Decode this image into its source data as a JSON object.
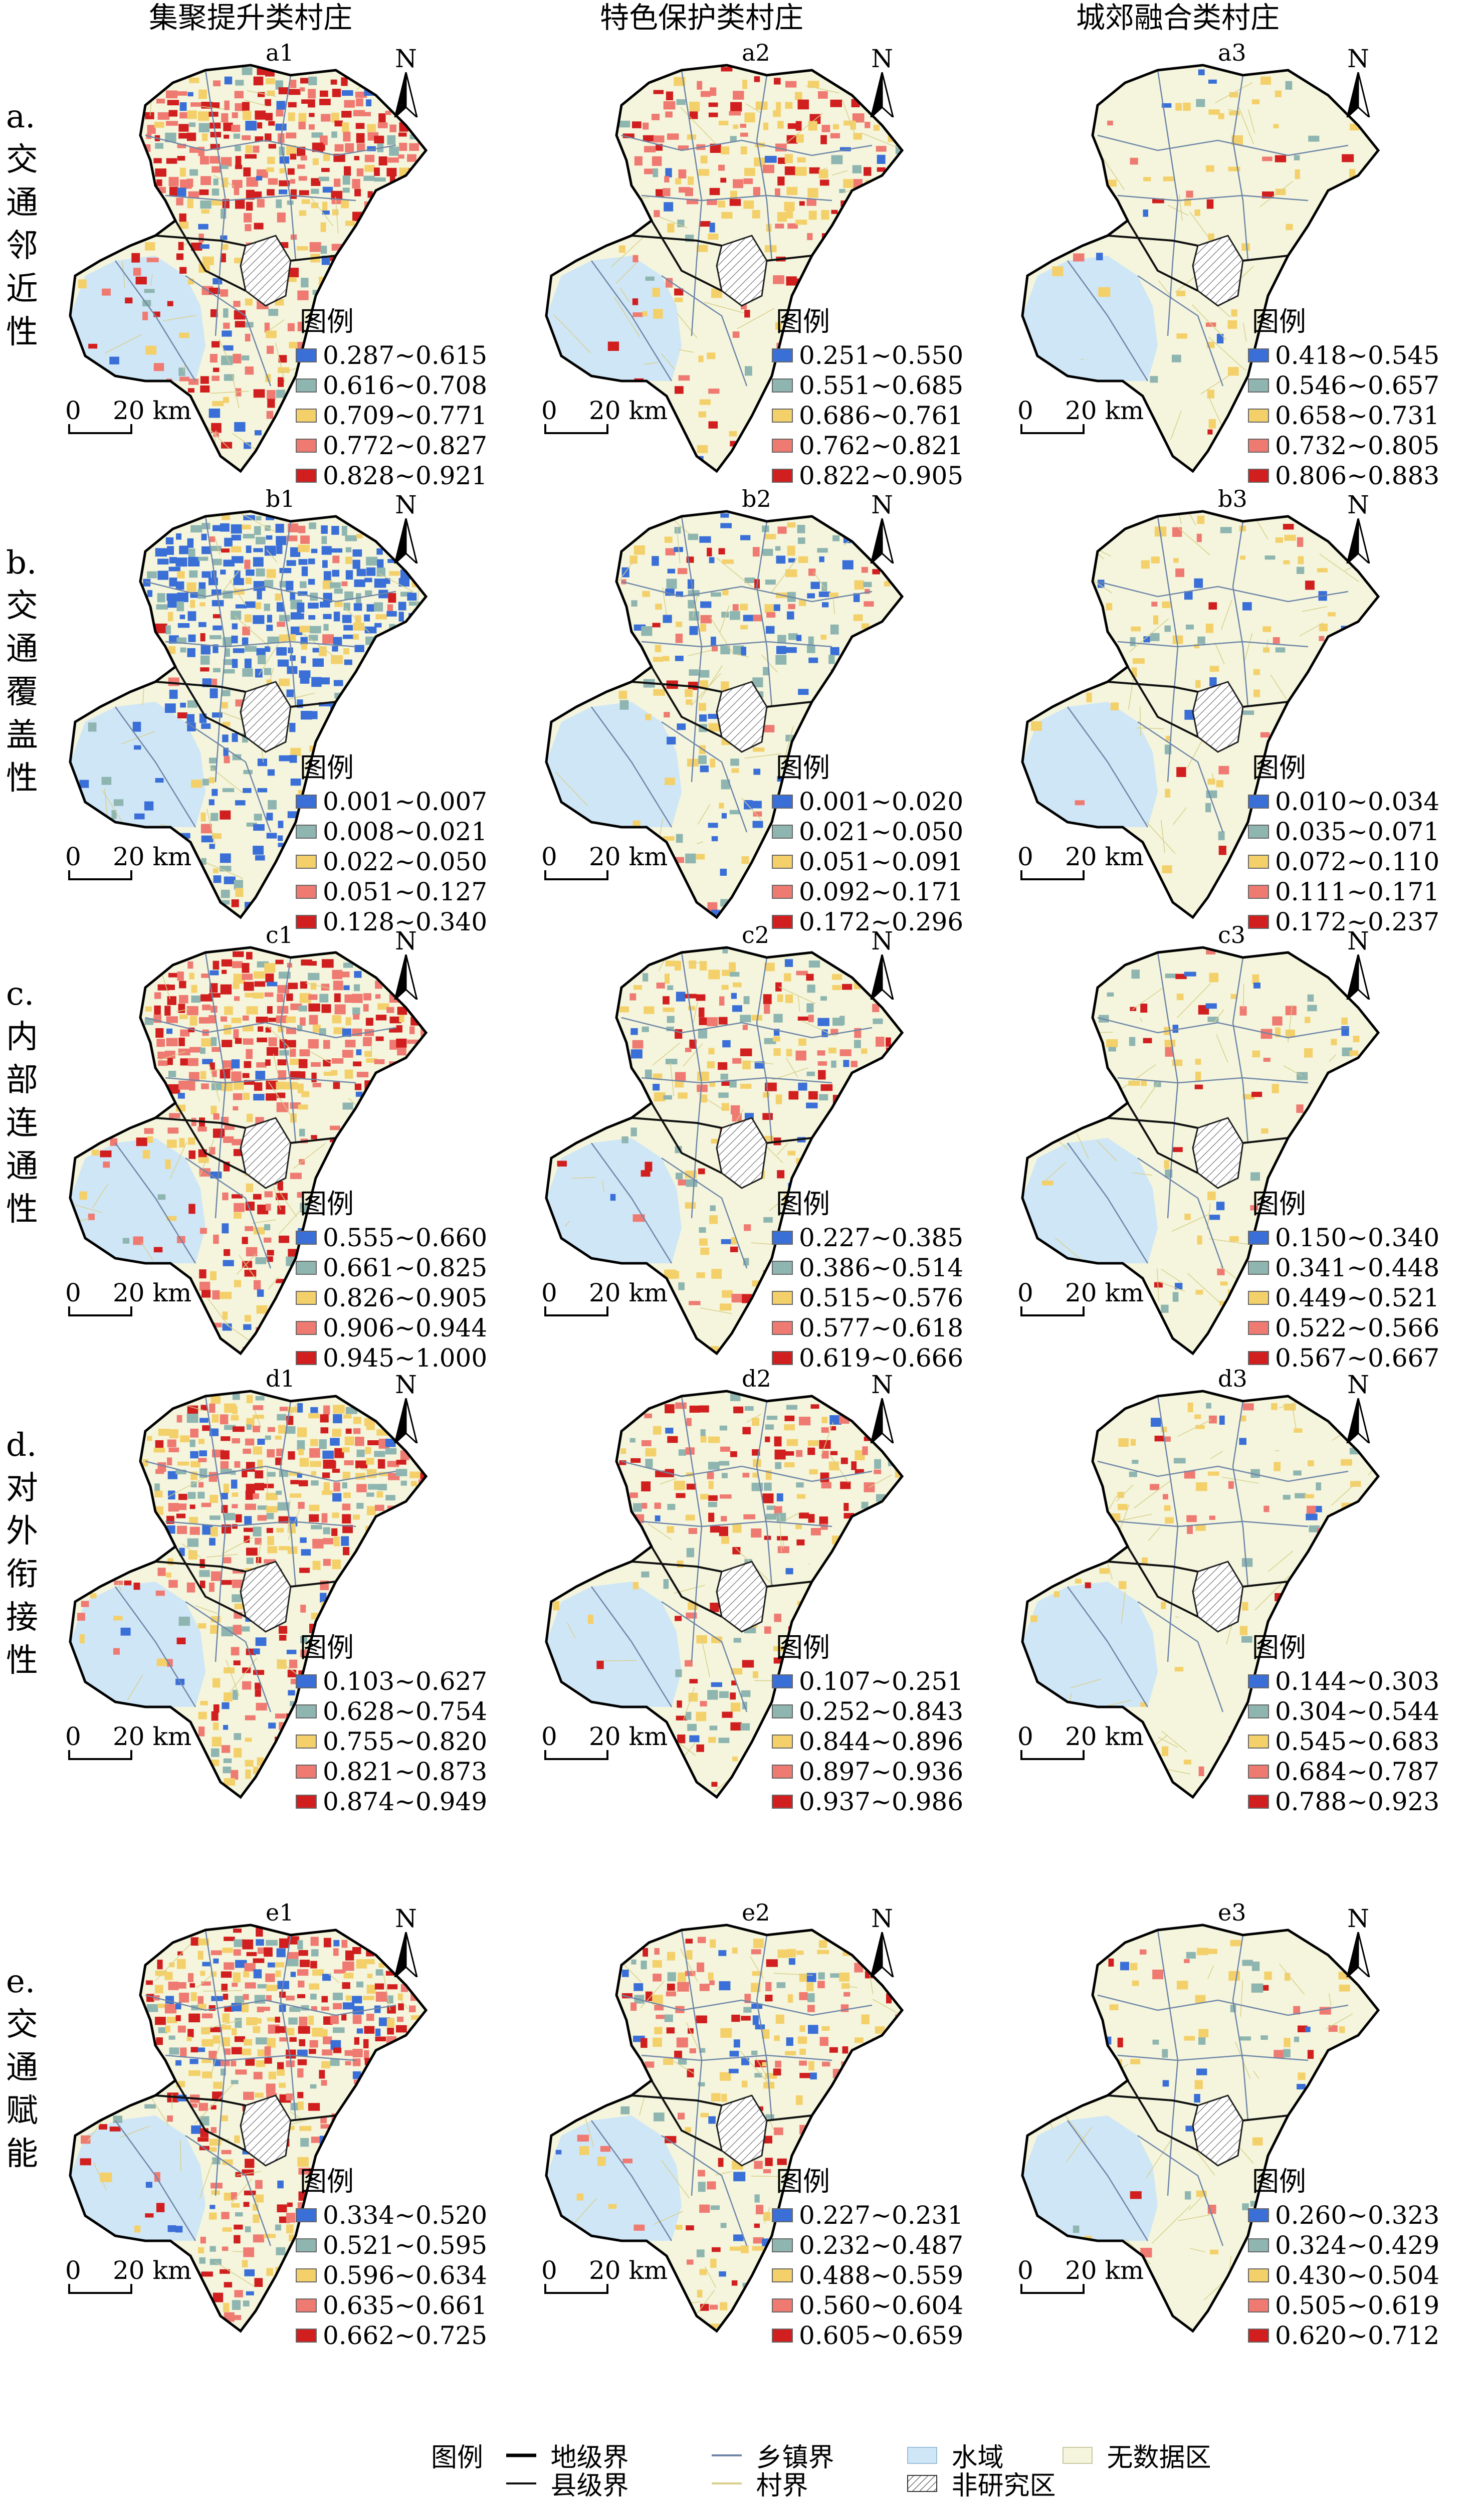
{
  "columns": [
    {
      "title": "集聚提升类村庄"
    },
    {
      "title": "特色保护类村庄"
    },
    {
      "title": "城郊融合类村庄"
    }
  ],
  "rows": [
    {
      "label_chars": [
        "a.",
        "交",
        "通",
        "邻",
        "近",
        "性"
      ],
      "panels": [
        {
          "id": "a1",
          "legend": [
            "0.287~0.615",
            "0.616~0.708",
            "0.709~0.771",
            "0.772~0.827",
            "0.828~0.921"
          ]
        },
        {
          "id": "a2",
          "legend": [
            "0.251~0.550",
            "0.551~0.685",
            "0.686~0.761",
            "0.762~0.821",
            "0.822~0.905"
          ]
        },
        {
          "id": "a3",
          "legend": [
            "0.418~0.545",
            "0.546~0.657",
            "0.658~0.731",
            "0.732~0.805",
            "0.806~0.883"
          ]
        }
      ]
    },
    {
      "label_chars": [
        "b.",
        "交",
        "通",
        "覆",
        "盖",
        "性"
      ],
      "panels": [
        {
          "id": "b1",
          "legend": [
            "0.001~0.007",
            "0.008~0.021",
            "0.022~0.050",
            "0.051~0.127",
            "0.128~0.340"
          ]
        },
        {
          "id": "b2",
          "legend": [
            "0.001~0.020",
            "0.021~0.050",
            "0.051~0.091",
            "0.092~0.171",
            "0.172~0.296"
          ]
        },
        {
          "id": "b3",
          "legend": [
            "0.010~0.034",
            "0.035~0.071",
            "0.072~0.110",
            "0.111~0.171",
            "0.172~0.237"
          ]
        }
      ]
    },
    {
      "label_chars": [
        "c.",
        "内",
        "部",
        "连",
        "通",
        "性"
      ],
      "panels": [
        {
          "id": "c1",
          "legend": [
            "0.555~0.660",
            "0.661~0.825",
            "0.826~0.905",
            "0.906~0.944",
            "0.945~1.000"
          ]
        },
        {
          "id": "c2",
          "legend": [
            "0.227~0.385",
            "0.386~0.514",
            "0.515~0.576",
            "0.577~0.618",
            "0.619~0.666"
          ]
        },
        {
          "id": "c3",
          "legend": [
            "0.150~0.340",
            "0.341~0.448",
            "0.449~0.521",
            "0.522~0.566",
            "0.567~0.667"
          ]
        }
      ]
    },
    {
      "label_chars": [
        "d.",
        "对",
        "外",
        "衔",
        "接",
        "性"
      ],
      "panels": [
        {
          "id": "d1",
          "legend": [
            "0.103~0.627",
            "0.628~0.754",
            "0.755~0.820",
            "0.821~0.873",
            "0.874~0.949"
          ]
        },
        {
          "id": "d2",
          "legend": [
            "0.107~0.251",
            "0.252~0.843",
            "0.844~0.896",
            "0.897~0.936",
            "0.937~0.986"
          ]
        },
        {
          "id": "d3",
          "legend": [
            "0.144~0.303",
            "0.304~0.544",
            "0.545~0.683",
            "0.684~0.787",
            "0.788~0.923"
          ]
        }
      ]
    },
    {
      "label_chars": [
        "e.",
        "交",
        "通",
        "赋",
        "能"
      ],
      "panels": [
        {
          "id": "e1",
          "legend": [
            "0.334~0.520",
            "0.521~0.595",
            "0.596~0.634",
            "0.635~0.661",
            "0.662~0.725"
          ]
        },
        {
          "id": "e2",
          "legend": [
            "0.227~0.231",
            "0.232~0.487",
            "0.488~0.559",
            "0.560~0.604",
            "0.605~0.659"
          ]
        },
        {
          "id": "e3",
          "legend": [
            "0.260~0.323",
            "0.324~0.429",
            "0.430~0.504",
            "0.505~0.619",
            "0.620~0.712"
          ]
        }
      ]
    }
  ],
  "legend_title": "图例",
  "north_label": "N",
  "scale": {
    "zero": "0",
    "distance": "20 km"
  },
  "class_colors": [
    "#3a6fd8",
    "#8fb5b0",
    "#f4d06a",
    "#ef7a72",
    "#d11f1f"
  ],
  "map_colors": {
    "water": "#cfe6f7",
    "nodata": "#f4f5dc",
    "village_line": "#d8cf8a",
    "township_line": "#6f86a8",
    "county_line": "#111111"
  },
  "bottom_legend": {
    "title": "图例",
    "items": {
      "prefecture": "地级界",
      "township": "乡镇界",
      "water": "水域",
      "nodata": "无数据区",
      "county": "县级界",
      "village": "村界",
      "non_study": "非研究区"
    }
  }
}
